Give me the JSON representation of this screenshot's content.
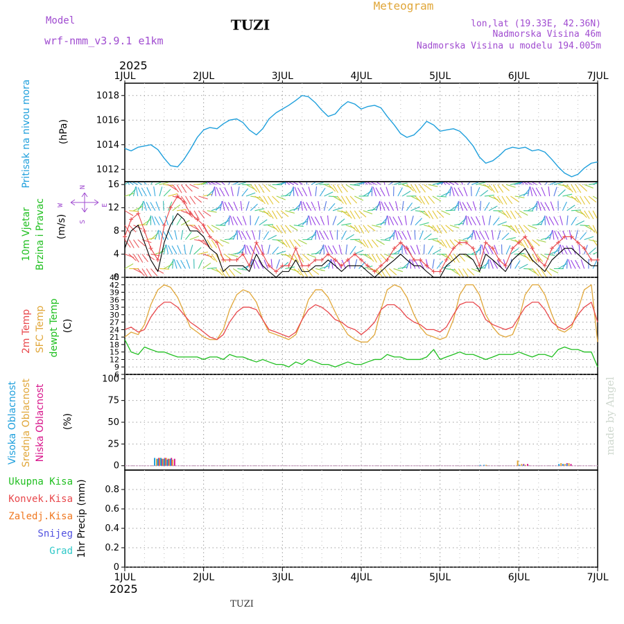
{
  "header": {
    "model_label": "Model",
    "model_name": "wrf-nmm_v3.9.1 e1km",
    "station": "TUZI",
    "meteogram_label": "Meteogram",
    "lonlat": "lon,lat (19.33E, 42.36N)",
    "elevation": "Nadmorska Visina 46m",
    "model_elevation": "Nadmorska Visina u modelu 194.005m",
    "year": "2025",
    "footer_station": "TUZI",
    "watermark": "made by Angel"
  },
  "colors": {
    "pressure": "#1e9fdc",
    "temp2m": "#e8474b",
    "sfc_temp": "#e0a638",
    "dewpt": "#1fbf1f",
    "wind_gust": "#e8474b",
    "wind_speed": "#000000",
    "high_cloud": "#1e9fdc",
    "mid_cloud": "#e0a638",
    "low_cloud": "#d8138a",
    "total_precip": "#1fbf1f",
    "conv_precip": "#e8474b",
    "frozen_precip": "#f07820",
    "snow": "#5050e0",
    "hail": "#2ec8c8"
  },
  "chart_data": [
    {
      "type": "line",
      "panel": "pressure",
      "ylabel_parts": [
        "Pritisak na nivou mora",
        "(hPa)"
      ],
      "ylim": [
        1011,
        1019
      ],
      "yticks": [
        1012,
        1014,
        1016,
        1018
      ],
      "x_days": [
        0,
        0.08,
        0.17,
        0.25,
        0.33,
        0.42,
        0.5,
        0.58,
        0.67,
        0.75,
        0.83,
        0.92,
        1.0,
        1.08,
        1.17,
        1.25,
        1.33,
        1.42,
        1.5,
        1.58,
        1.67,
        1.75,
        1.83,
        1.92,
        2.0,
        2.08,
        2.17,
        2.25,
        2.33,
        2.42,
        2.5,
        2.58,
        2.67,
        2.75,
        2.83,
        2.92,
        3.0,
        3.08,
        3.17,
        3.25,
        3.33,
        3.42,
        3.5,
        3.58,
        3.67,
        3.75,
        3.83,
        3.92,
        4.0,
        4.08,
        4.17,
        4.25,
        4.33,
        4.42,
        4.5,
        4.58,
        4.67,
        4.75,
        4.83,
        4.92,
        5.0,
        5.08,
        5.17,
        5.25,
        5.33,
        5.42,
        5.5,
        5.58,
        5.67,
        5.75,
        5.83,
        5.92,
        6.0
      ],
      "series": [
        {
          "values": [
            1013.7,
            1013.5,
            1013.8,
            1013.9,
            1014.0,
            1013.6,
            1012.9,
            1012.3,
            1012.2,
            1012.8,
            1013.6,
            1014.6,
            1015.2,
            1015.4,
            1015.3,
            1015.7,
            1016.0,
            1016.1,
            1015.8,
            1015.2,
            1014.8,
            1015.3,
            1016.1,
            1016.6,
            1016.9,
            1017.2,
            1017.6,
            1018.0,
            1017.9,
            1017.4,
            1016.8,
            1016.3,
            1016.5,
            1017.1,
            1017.5,
            1017.3,
            1016.9,
            1017.1,
            1017.2,
            1017.0,
            1016.3,
            1015.6,
            1014.9,
            1014.6,
            1014.8,
            1015.3,
            1015.9,
            1015.6,
            1015.1,
            1015.2,
            1015.3,
            1015.1,
            1014.6,
            1013.9,
            1013.0,
            1012.5,
            1012.7,
            1013.1,
            1013.6,
            1013.8,
            1013.7,
            1013.8,
            1013.5,
            1013.6,
            1013.4,
            1012.8,
            1012.2,
            1011.7,
            1011.4,
            1011.6,
            1012.1,
            1012.5,
            1012.6
          ]
        }
      ]
    },
    {
      "type": "line",
      "panel": "wind",
      "ylabel_parts": [
        "10m Vjetar",
        "Brzina i Pravac",
        "(m/s)"
      ],
      "compass": [
        "N",
        "E",
        "S",
        "W"
      ],
      "ylim": [
        0,
        16.5
      ],
      "yticks": [
        0,
        4,
        8,
        12,
        16
      ],
      "x_days": [
        0,
        0.08,
        0.17,
        0.25,
        0.33,
        0.42,
        0.5,
        0.58,
        0.67,
        0.75,
        0.83,
        0.92,
        1.0,
        1.08,
        1.17,
        1.25,
        1.33,
        1.42,
        1.5,
        1.58,
        1.67,
        1.75,
        1.83,
        1.92,
        2.0,
        2.08,
        2.17,
        2.25,
        2.33,
        2.42,
        2.5,
        2.58,
        2.67,
        2.75,
        2.83,
        2.92,
        3.0,
        3.08,
        3.17,
        3.25,
        3.33,
        3.42,
        3.5,
        3.58,
        3.67,
        3.75,
        3.83,
        3.92,
        4.0,
        4.08,
        4.17,
        4.25,
        4.33,
        4.42,
        4.5,
        4.58,
        4.67,
        4.75,
        4.83,
        4.92,
        5.0,
        5.08,
        5.17,
        5.25,
        5.33,
        5.42,
        5.5,
        5.58,
        5.67,
        5.75,
        5.83,
        5.92,
        6.0
      ],
      "series": [
        {
          "values": [
            5,
            8,
            9,
            6,
            3,
            1,
            6,
            9,
            11,
            10,
            8,
            8,
            7,
            5,
            4,
            1,
            2,
            2,
            2,
            1,
            4,
            2,
            1,
            0,
            1,
            1,
            3,
            1,
            1,
            2,
            2,
            3,
            2,
            1,
            2,
            2,
            2,
            1,
            0,
            1,
            2,
            3,
            4,
            3,
            2,
            2,
            1,
            0,
            0,
            2,
            3,
            4,
            4,
            3,
            1,
            4,
            3,
            2,
            1,
            3,
            4,
            5,
            3,
            2,
            1,
            3,
            4,
            5,
            5,
            4,
            3,
            2,
            2
          ]
        },
        {
          "values": [
            7,
            10,
            11,
            8,
            5,
            3,
            9,
            12,
            14,
            13,
            11,
            10,
            9,
            7,
            6,
            3,
            3,
            3,
            4,
            2,
            6,
            4,
            2,
            1,
            2,
            2,
            5,
            2,
            2,
            3,
            3,
            4,
            3,
            2,
            3,
            4,
            3,
            2,
            1,
            2,
            3,
            5,
            6,
            5,
            3,
            3,
            2,
            1,
            1,
            3,
            5,
            6,
            6,
            5,
            2,
            6,
            5,
            3,
            2,
            5,
            6,
            7,
            5,
            3,
            2,
            5,
            6,
            7,
            7,
            6,
            5,
            3,
            3
          ]
        }
      ]
    },
    {
      "type": "line",
      "panel": "temperature",
      "ylabel_parts": [
        "2m Temp",
        "SFC Temp",
        "dewpt Temp",
        "(C)"
      ],
      "ylim": [
        6,
        45
      ],
      "yticks": [
        6,
        9,
        12,
        15,
        18,
        21,
        24,
        27,
        30,
        33,
        36,
        39,
        42,
        45
      ],
      "x_days": [
        0,
        0.08,
        0.17,
        0.25,
        0.33,
        0.42,
        0.5,
        0.58,
        0.67,
        0.75,
        0.83,
        0.92,
        1.0,
        1.08,
        1.17,
        1.25,
        1.33,
        1.42,
        1.5,
        1.58,
        1.67,
        1.75,
        1.83,
        1.92,
        2.0,
        2.08,
        2.17,
        2.25,
        2.33,
        2.42,
        2.5,
        2.58,
        2.67,
        2.75,
        2.83,
        2.92,
        3.0,
        3.08,
        3.17,
        3.25,
        3.33,
        3.42,
        3.5,
        3.58,
        3.67,
        3.75,
        3.83,
        3.92,
        4.0,
        4.08,
        4.17,
        4.25,
        4.33,
        4.42,
        4.5,
        4.58,
        4.67,
        4.75,
        4.83,
        4.92,
        5.0,
        5.08,
        5.17,
        5.25,
        5.33,
        5.42,
        5.5,
        5.58,
        5.67,
        5.75,
        5.83,
        5.92,
        6.0
      ],
      "series": [
        {
          "values": [
            24,
            25,
            23,
            24,
            29,
            33,
            35,
            35,
            33,
            30,
            27,
            25,
            23,
            21,
            20,
            22,
            27,
            31,
            33,
            33,
            32,
            28,
            24,
            23,
            22,
            21,
            23,
            28,
            32,
            34,
            33,
            31,
            28,
            27,
            25,
            24,
            22,
            24,
            27,
            32,
            34,
            34,
            32,
            29,
            27,
            26,
            24,
            24,
            23,
            25,
            30,
            34,
            35,
            35,
            33,
            28,
            26,
            25,
            24,
            25,
            29,
            33,
            35,
            35,
            32,
            27,
            25,
            24,
            26,
            30,
            33,
            35,
            27
          ]
        },
        {
          "values": [
            21,
            23,
            22,
            26,
            34,
            40,
            42,
            41,
            37,
            31,
            25,
            23,
            21,
            20,
            20,
            24,
            32,
            38,
            40,
            39,
            35,
            28,
            23,
            22,
            21,
            20,
            22,
            28,
            36,
            40,
            40,
            37,
            31,
            26,
            22,
            20,
            19,
            19,
            22,
            32,
            40,
            42,
            41,
            37,
            30,
            25,
            22,
            21,
            20,
            21,
            28,
            38,
            42,
            42,
            38,
            30,
            25,
            22,
            21,
            22,
            28,
            38,
            42,
            42,
            38,
            30,
            24,
            23,
            25,
            32,
            40,
            42,
            19
          ]
        },
        {
          "values": [
            20,
            15,
            14,
            17,
            16,
            15,
            15,
            14,
            13,
            13,
            13,
            13,
            12,
            13,
            13,
            12,
            14,
            13,
            13,
            12,
            11,
            12,
            11,
            10,
            10,
            9,
            11,
            10,
            12,
            11,
            10,
            10,
            9,
            10,
            11,
            10,
            10,
            11,
            12,
            12,
            14,
            13,
            13,
            12,
            12,
            12,
            13,
            16,
            12,
            13,
            14,
            15,
            14,
            14,
            13,
            12,
            13,
            14,
            14,
            14,
            15,
            14,
            13,
            14,
            14,
            13,
            16,
            17,
            16,
            16,
            15,
            15,
            9
          ]
        }
      ]
    },
    {
      "type": "bar",
      "panel": "cloud",
      "ylabel_parts": [
        "Visoka Oblacnost",
        "Srednja Oblacnost",
        "Niska Oblacnost",
        "(%)"
      ],
      "ylim": [
        -5,
        105
      ],
      "yticks": [
        0,
        25,
        50,
        75,
        100
      ],
      "bar_days": [
        0.37,
        0.41,
        0.45,
        0.49,
        0.53,
        0.57,
        4.5,
        4.55,
        4.6,
        4.95,
        5.0,
        5.05,
        5.5,
        5.55,
        5.6
      ],
      "series": [
        {
          "name": "Visoka Oblacnost",
          "values": [
            9,
            8,
            9,
            8,
            7,
            8,
            1,
            1,
            0,
            0,
            1,
            1,
            2,
            2,
            2
          ]
        },
        {
          "name": "Srednja Oblacnost",
          "values": [
            8,
            9,
            8,
            9,
            8,
            7,
            0,
            1,
            0,
            6,
            2,
            1,
            3,
            2,
            3
          ]
        },
        {
          "name": "Niska Oblacnost",
          "values": [
            9,
            8,
            9,
            8,
            9,
            8,
            0,
            0,
            0,
            0,
            2,
            2,
            2,
            3,
            2
          ]
        }
      ]
    },
    {
      "type": "bar",
      "panel": "precip",
      "ylabel_parts": [
        "1hr Precip (mm)"
      ],
      "legend": [
        "Ukupna Kisa",
        "Konvek.Kisa",
        "Zaledj.Kisa",
        "Snijeg",
        "Grad"
      ],
      "ylim": [
        0,
        1.0
      ],
      "yticks": [
        0,
        0.2,
        0.4,
        0.6,
        0.8
      ],
      "series": [
        {
          "name": "Ukupna Kisa",
          "values": []
        },
        {
          "name": "Konvek.Kisa",
          "values": []
        },
        {
          "name": "Zaledj.Kisa",
          "values": []
        },
        {
          "name": "Snijeg",
          "values": []
        },
        {
          "name": "Grad",
          "values": []
        }
      ]
    }
  ],
  "x_axis": {
    "day_labels": [
      "1JUL",
      "2JUL",
      "3JUL",
      "4JUL",
      "5JUL",
      "6JUL",
      "7JUL"
    ],
    "xlim": [
      0,
      6
    ]
  }
}
